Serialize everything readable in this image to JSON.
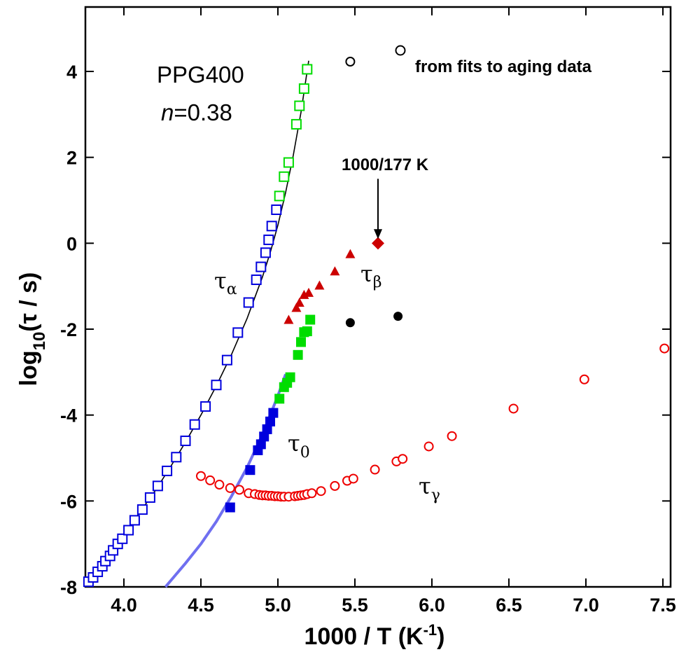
{
  "chart_data": {
    "type": "scatter",
    "title": "",
    "xlabel": "1000 / T (K-1)",
    "ylabel": "log10(τ / s)",
    "xlim": [
      3.75,
      7.55
    ],
    "ylim": [
      -8,
      5.5
    ],
    "x_ticks": [
      4.0,
      4.5,
      5.0,
      5.5,
      6.0,
      6.5,
      7.0,
      7.5
    ],
    "x_tick_labels": [
      "4.0",
      "4.5",
      "5.0",
      "5.5",
      "6.0",
      "6.5",
      "7.0",
      "7.5"
    ],
    "y_ticks": [
      4,
      2,
      0,
      -2,
      -4,
      -6,
      -8
    ],
    "y_tick_labels": [
      "4",
      "2",
      "0",
      "-2",
      "-4",
      "-6",
      "-8"
    ],
    "grid": false,
    "annotations": {
      "sample": "PPG400",
      "n_label": "n",
      "n_value": "=0.38",
      "legend_note": "from fits to aging data",
      "arrow_label": "1000/177 K",
      "tau_alpha": "τ",
      "tau_alpha_sub": "α",
      "tau_beta": "τ",
      "tau_beta_sub": "β",
      "tau_zero": "τ",
      "tau_zero_sub": "0",
      "tau_gamma": "τ",
      "tau_gamma_sub": "γ"
    },
    "arrow": {
      "x": 5.65,
      "y_from": 1.5,
      "y_to": 0.1
    },
    "series": [
      {
        "marker": "open-square",
        "color": "#0000dd",
        "x": [
          3.77,
          3.8,
          3.83,
          3.86,
          3.88,
          3.91,
          3.93,
          3.96,
          3.99,
          4.03,
          4.07,
          4.12,
          4.17,
          4.22,
          4.28,
          4.34,
          4.4,
          4.46,
          4.53,
          4.6,
          4.67,
          4.74,
          4.81,
          4.86,
          4.89,
          4.92,
          4.94,
          4.96,
          4.99
        ],
        "y": [
          -7.88,
          -7.78,
          -7.65,
          -7.52,
          -7.4,
          -7.28,
          -7.15,
          -7.0,
          -6.88,
          -6.68,
          -6.45,
          -6.2,
          -5.92,
          -5.65,
          -5.3,
          -4.98,
          -4.6,
          -4.22,
          -3.8,
          -3.3,
          -2.72,
          -2.08,
          -1.38,
          -0.85,
          -0.55,
          -0.22,
          0.08,
          0.4,
          0.78
        ]
      },
      {
        "marker": "open-square",
        "color": "#00dd00",
        "x": [
          5.01,
          5.04,
          5.07,
          5.12,
          5.14,
          5.17,
          5.19
        ],
        "y": [
          1.1,
          1.55,
          1.88,
          2.77,
          3.2,
          3.6,
          4.05
        ]
      },
      {
        "marker": "filled-square",
        "color": "#0000dd",
        "x": [
          4.69,
          4.82,
          4.87,
          4.89,
          4.91,
          4.93,
          4.95,
          4.97
        ],
        "y": [
          -6.15,
          -5.28,
          -4.82,
          -4.68,
          -4.5,
          -4.33,
          -4.15,
          -3.95
        ]
      },
      {
        "marker": "filled-square",
        "color": "#00dd00",
        "x": [
          5.01,
          5.04,
          5.06,
          5.08,
          5.13,
          5.15,
          5.17,
          5.19,
          5.21
        ],
        "y": [
          -3.62,
          -3.35,
          -3.25,
          -3.12,
          -2.6,
          -2.3,
          -2.07,
          -2.05,
          -1.78
        ]
      },
      {
        "marker": "filled-triangle",
        "color": "#cc0000",
        "x": [
          5.07,
          5.12,
          5.14,
          5.17,
          5.2,
          5.27,
          5.37,
          5.47
        ],
        "y": [
          -1.78,
          -1.5,
          -1.38,
          -1.2,
          -1.15,
          -0.98,
          -0.65,
          -0.25
        ]
      },
      {
        "marker": "filled-diamond",
        "color": "#cc0000",
        "x": [
          5.65
        ],
        "y": [
          0.0
        ]
      },
      {
        "marker": "filled-circle",
        "color": "#000000",
        "x": [
          5.47,
          5.78
        ],
        "y": [
          -1.85,
          -1.7
        ]
      },
      {
        "marker": "open-circle",
        "color": "#ee0000",
        "x": [
          4.5,
          4.56,
          4.62,
          4.69,
          4.75,
          4.81,
          4.85,
          4.88,
          4.9,
          4.92,
          4.94,
          4.96,
          4.98,
          5.0,
          5.02,
          5.04,
          5.07,
          5.11,
          5.13,
          5.15,
          5.17,
          5.19,
          5.22,
          5.28,
          5.37,
          5.45,
          5.49,
          5.63,
          5.77,
          5.81,
          5.98,
          6.13,
          6.53,
          6.99,
          7.51
        ],
        "y": [
          -5.42,
          -5.52,
          -5.62,
          -5.7,
          -5.74,
          -5.82,
          -5.84,
          -5.86,
          -5.87,
          -5.87,
          -5.88,
          -5.88,
          -5.89,
          -5.89,
          -5.9,
          -5.9,
          -5.9,
          -5.89,
          -5.88,
          -5.87,
          -5.86,
          -5.84,
          -5.82,
          -5.77,
          -5.65,
          -5.53,
          -5.48,
          -5.27,
          -5.08,
          -5.02,
          -4.73,
          -4.49,
          -3.85,
          -3.17,
          -2.45
        ]
      }
    ],
    "legend_marker": {
      "marker": "open-circle",
      "color": "#000000"
    },
    "fits": [
      {
        "style": "thin-line",
        "color": "#000000",
        "x": [
          3.77,
          3.9,
          4.0,
          4.1,
          4.2,
          4.3,
          4.4,
          4.5,
          4.6,
          4.7,
          4.8,
          4.9,
          4.95,
          5.0,
          5.05,
          5.1,
          5.15,
          5.2
        ],
        "y": [
          -7.9,
          -7.25,
          -6.78,
          -6.28,
          -5.78,
          -5.22,
          -4.63,
          -4.0,
          -3.32,
          -2.58,
          -1.75,
          -0.78,
          -0.22,
          0.42,
          1.18,
          2.05,
          3.05,
          4.25
        ]
      },
      {
        "style": "thick-line",
        "color": "#6f6ff0",
        "x": [
          4.27,
          4.4,
          4.5,
          4.6,
          4.7,
          4.8,
          4.9,
          5.0,
          5.05
        ],
        "y": [
          -8.0,
          -7.45,
          -7.0,
          -6.48,
          -5.88,
          -5.22,
          -4.45,
          -3.55,
          -3.05
        ]
      }
    ]
  }
}
